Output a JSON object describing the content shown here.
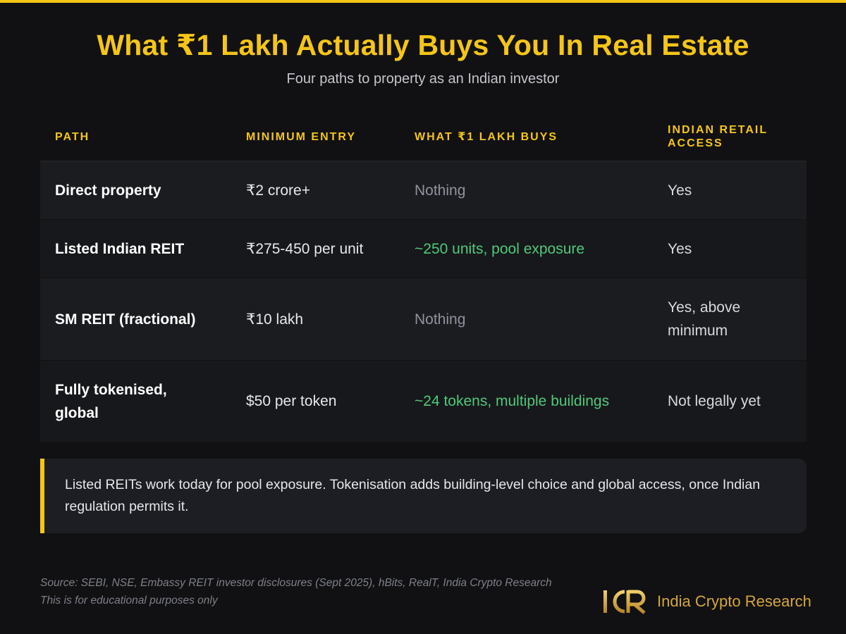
{
  "header": {
    "title": "What ₹1 Lakh Actually Buys You In Real Estate",
    "subtitle": "Four paths to property as an Indian investor"
  },
  "table": {
    "columns": [
      "PATH",
      "MINIMUM ENTRY",
      "WHAT ₹1 LAKH BUYS",
      "INDIAN RETAIL ACCESS"
    ],
    "rows": [
      {
        "path": "Direct property",
        "min_entry": "₹2 crore+",
        "buys": "Nothing",
        "buys_status": "none",
        "access": "Yes"
      },
      {
        "path": "Listed Indian REIT",
        "min_entry": "₹275-450 per unit",
        "buys": "~250 units, pool exposure",
        "buys_status": "good",
        "access": "Yes"
      },
      {
        "path": "SM REIT (fractional)",
        "min_entry": "₹10 lakh",
        "buys": "Nothing",
        "buys_status": "none",
        "access": "Yes, above minimum"
      },
      {
        "path": "Fully tokenised, global",
        "min_entry": "$50 per token",
        "buys": "~24 tokens, multiple buildings",
        "buys_status": "good",
        "access": "Not legally yet"
      }
    ]
  },
  "callout": {
    "text": "Listed REITs work today for pool exposure. Tokenisation adds building-level choice and global access, once Indian regulation permits it."
  },
  "footer": {
    "source": "Source: SEBI, NSE, Embassy REIT investor disclosures (Sept 2025), hBits, RealT, India Crypto Research",
    "disclaimer": "This is for educational purposes only",
    "brand_name": "India Crypto Research"
  },
  "colors": {
    "accent": "#f5c518",
    "positive": "#4fc97a",
    "muted": "#8f939c",
    "background": "#111113"
  },
  "icons": {
    "logo": "icr-logo-icon"
  }
}
